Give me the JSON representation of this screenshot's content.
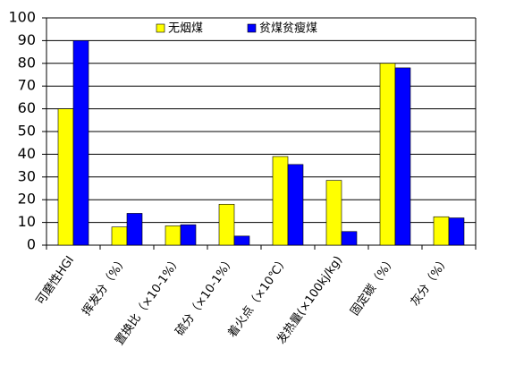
{
  "chart_data": {
    "type": "bar",
    "categories": [
      "可磨性HGI",
      "挥发分（%）",
      "置换比（×10-1%）",
      "硫分（×10-1%）",
      "着火点（×10℃）",
      "发热量(×100kj/kg)",
      "固定碳（%）",
      "灰分（%）"
    ],
    "series": [
      {
        "name": "无烟煤",
        "color": "#ffff00",
        "values": [
          60,
          8,
          8.5,
          18,
          39,
          28.5,
          80,
          12.5
        ]
      },
      {
        "name": "贫煤贫瘦煤",
        "color": "#0000ff",
        "values": [
          90,
          14,
          9,
          4,
          35.5,
          6,
          78,
          12
        ]
      }
    ],
    "ylim": [
      0,
      100
    ],
    "yticks": [
      0,
      10,
      20,
      30,
      40,
      50,
      60,
      70,
      80,
      90,
      100
    ],
    "grid": true,
    "legend": "top"
  }
}
